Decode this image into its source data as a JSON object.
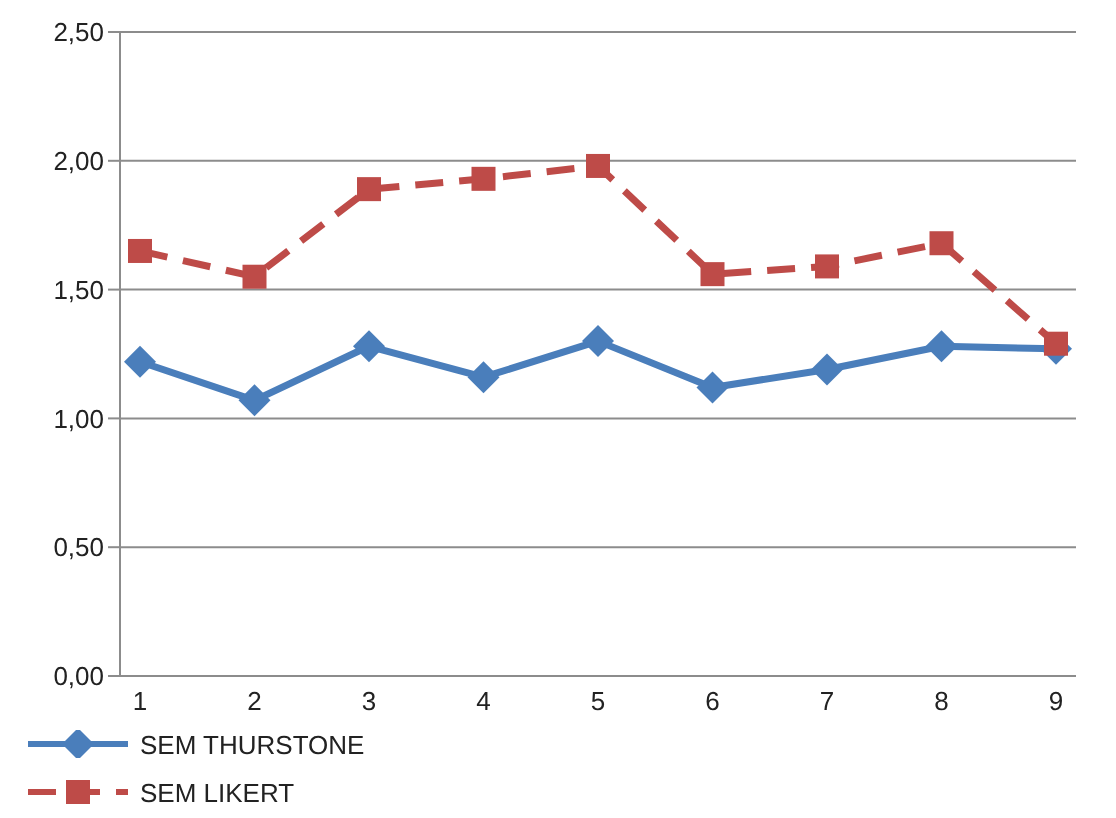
{
  "chart_data": {
    "type": "line",
    "categories": [
      "1",
      "2",
      "3",
      "4",
      "5",
      "6",
      "7",
      "8",
      "9"
    ],
    "series": [
      {
        "name": "SEM THURSTONE",
        "color": "#4a7ebb",
        "marker": "diamond",
        "line_style": "solid",
        "values": [
          1.22,
          1.07,
          1.28,
          1.16,
          1.3,
          1.12,
          1.19,
          1.28,
          1.27
        ]
      },
      {
        "name": "SEM LIKERT",
        "color": "#be4b48",
        "marker": "square",
        "line_style": "dashed",
        "values": [
          1.65,
          1.55,
          1.89,
          1.93,
          1.98,
          1.56,
          1.59,
          1.68,
          1.29
        ]
      }
    ],
    "ylim": [
      0,
      2.5
    ],
    "yticks": [
      {
        "value": 0,
        "label": "0,00"
      },
      {
        "value": 0.5,
        "label": "0,50"
      },
      {
        "value": 1,
        "label": "1,00"
      },
      {
        "value": 1.5,
        "label": "1,50"
      },
      {
        "value": 2,
        "label": "2,00"
      },
      {
        "value": 2.5,
        "label": "2,50"
      }
    ],
    "grid": "y",
    "legend": "bottom left"
  }
}
